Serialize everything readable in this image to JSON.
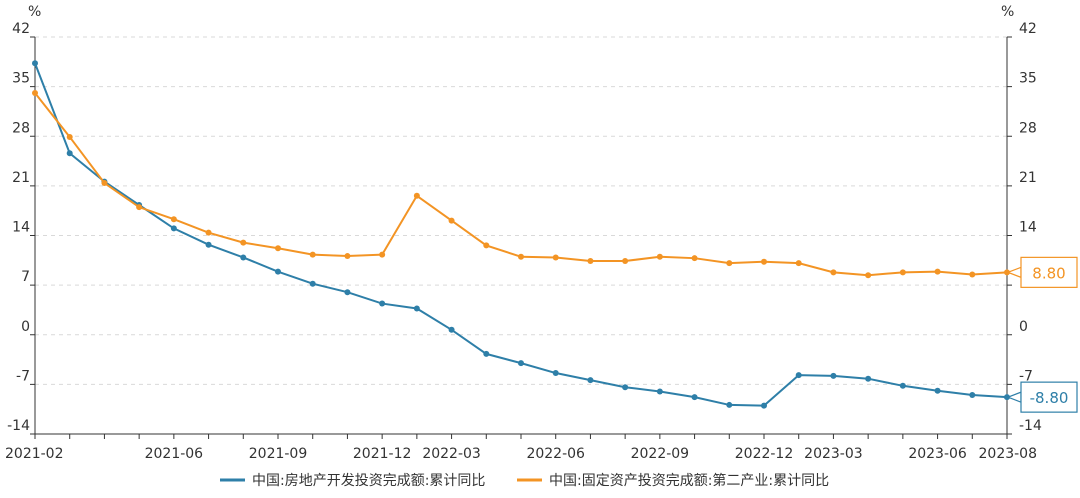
{
  "chart_data": {
    "type": "line",
    "y_unit_left": "%",
    "y_unit_right": "%",
    "ylim": [
      -14,
      42
    ],
    "yticks": [
      -14,
      -7,
      0,
      7,
      14,
      21,
      28,
      35,
      42
    ],
    "x": [
      "2021-02",
      "2021-03",
      "2021-04",
      "2021-05",
      "2021-06",
      "2021-07",
      "2021-08",
      "2021-09",
      "2021-10",
      "2021-11",
      "2021-12",
      "2022-02",
      "2022-03",
      "2022-04",
      "2022-05",
      "2022-06",
      "2022-07",
      "2022-08",
      "2022-09",
      "2022-10",
      "2022-11",
      "2022-12",
      "2023-02",
      "2023-03",
      "2023-04",
      "2023-05",
      "2023-06",
      "2023-07",
      "2023-08"
    ],
    "xtick_labels": [
      "2021-02",
      "2021-06",
      "2021-09",
      "2021-12",
      "2022-03",
      "2022-06",
      "2022-09",
      "2022-12",
      "2023-03",
      "2023-06",
      "2023-08"
    ],
    "grid": true,
    "legend_position": "bottom",
    "series": [
      {
        "name": "中国:房地产开发投资完成额:累计同比",
        "color": "#2e7fa8",
        "values": [
          38.3,
          25.6,
          21.6,
          18.3,
          15.0,
          12.7,
          10.9,
          8.9,
          7.2,
          6.0,
          4.4,
          3.7,
          0.7,
          -2.7,
          -4.0,
          -5.4,
          -6.4,
          -7.4,
          -8.0,
          -8.8,
          -9.9,
          -10.0,
          -5.7,
          -5.8,
          -6.2,
          -7.2,
          -7.9,
          -8.5,
          -8.8
        ],
        "end_label": "-8.80"
      },
      {
        "name": "中国:固定资产投资完成额:第二产业:累计同比",
        "color": "#f39424",
        "values": [
          34.1,
          27.9,
          21.4,
          18.0,
          16.3,
          14.4,
          13.0,
          12.2,
          11.3,
          11.1,
          11.3,
          19.6,
          16.1,
          12.6,
          11.0,
          10.9,
          10.4,
          10.4,
          11.0,
          10.8,
          10.1,
          10.3,
          10.1,
          8.8,
          8.4,
          8.8,
          8.9,
          8.5,
          8.8
        ],
        "end_label": "8.80"
      }
    ]
  }
}
